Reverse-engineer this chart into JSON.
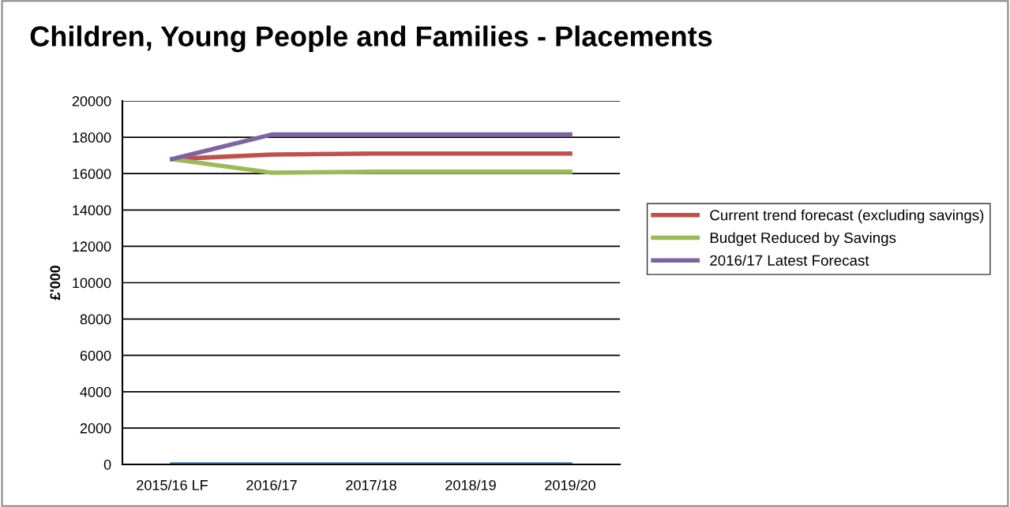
{
  "chart_data": {
    "type": "line",
    "title": "Children, Young People and Families - Placements",
    "ylabel": "£'000",
    "categories": [
      "2015/16 LF",
      "2016/17",
      "2017/18",
      "2018/19",
      "2019/20"
    ],
    "series": [
      {
        "name": null,
        "color": "#4f81bd",
        "values": [
          0,
          0,
          0,
          0,
          0
        ]
      },
      {
        "name": "Current trend forecast (excluding savings)",
        "color": "#c0504d",
        "values": [
          16800,
          17050,
          17100,
          17100,
          17100
        ]
      },
      {
        "name": "Budget Reduced by Savings",
        "color": "#9bbb59",
        "values": [
          16800,
          16050,
          16100,
          16100,
          16100
        ]
      },
      {
        "name": "2016/17 Latest Forecast",
        "color": "#8064a2",
        "values": [
          16800,
          18150,
          18150,
          18150,
          18150
        ]
      }
    ],
    "ylim": [
      0,
      20000
    ],
    "yticks": [
      0,
      2000,
      4000,
      6000,
      8000,
      10000,
      12000,
      14000,
      16000,
      18000,
      20000
    ],
    "grid": "y",
    "legend": "right",
    "marker": "none",
    "line_style": "solid"
  }
}
